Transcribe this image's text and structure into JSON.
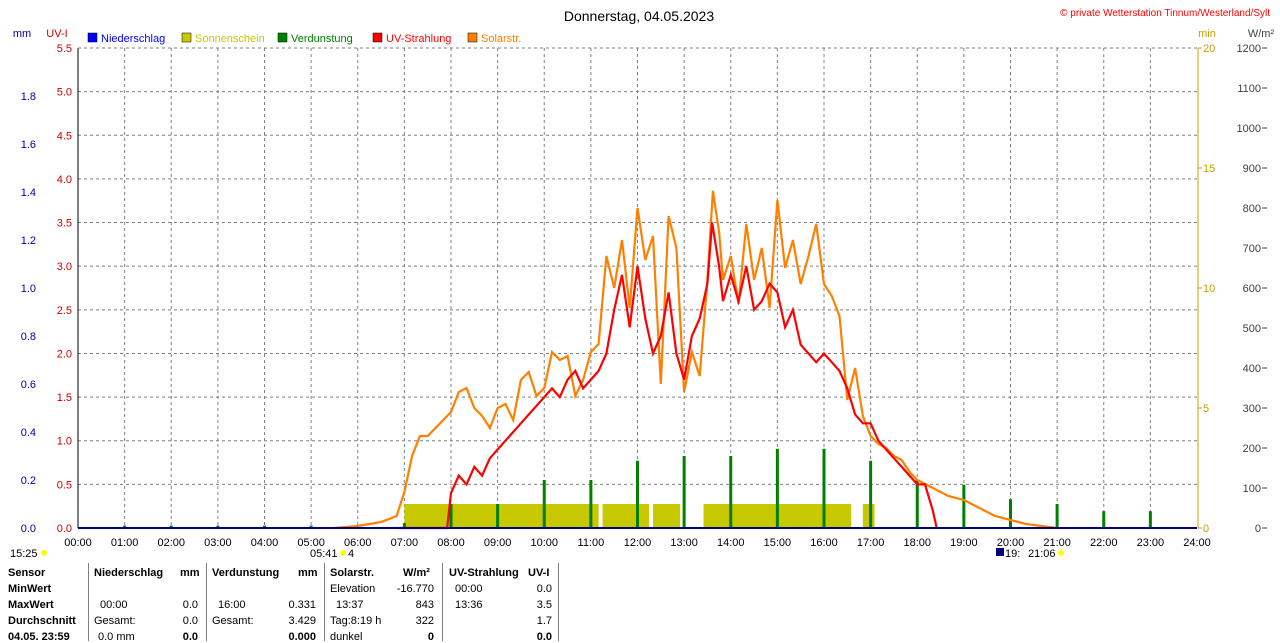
{
  "title": "Donnerstag, 04.05.2023",
  "copyright": "© private Wetterstation Tinnum/Westerland/Sylt",
  "colors": {
    "niederschlag": "#0000ff",
    "sonnenschein": "#c8c800",
    "verdunstung": "#008000",
    "uv": "#ff0000",
    "solar": "#ff8000",
    "mm_axis": "#0000a0",
    "uv_axis": "#cc0000",
    "min_axis": "#c8a000",
    "wm2_axis": "#404040",
    "grid": "#808080"
  },
  "legend": [
    {
      "label": "Niederschlag",
      "color": "#0000ff"
    },
    {
      "label": "Sonnenschein",
      "color": "#c8c800"
    },
    {
      "label": "Verdunstung",
      "color": "#008000"
    },
    {
      "label": "UV-Strahlung",
      "color": "#ff0000"
    },
    {
      "label": "Solarstr.",
      "color": "#ff8000"
    }
  ],
  "axis_units": {
    "mm": "mm",
    "uv": "UV-I",
    "min": "min",
    "wm2": "W/m²"
  },
  "sun": {
    "sunrise_label": "05:41",
    "sunrise_extra": "4",
    "sunset_label": "21:06",
    "sunset_prefix": "19:",
    "daylength_left": "15:25"
  },
  "chart_data": {
    "type": "line",
    "x_unit": "time",
    "xlim": [
      "00:00",
      "24:00"
    ],
    "x_ticks": [
      "00:00",
      "01:00",
      "02:00",
      "03:00",
      "04:00",
      "05:00",
      "06:00",
      "07:00",
      "08:00",
      "09:00",
      "10:00",
      "11:00",
      "12:00",
      "13:00",
      "14:00",
      "15:00",
      "16:00",
      "17:00",
      "18:00",
      "19:00",
      "20:00",
      "21:00",
      "22:00",
      "23:00",
      "24:00"
    ],
    "axes": {
      "mm": {
        "label": "mm",
        "ylim": [
          0,
          2.0
        ],
        "ticks": [
          "0.0",
          "0.2",
          "0.4",
          "0.6",
          "0.8",
          "1.0",
          "1.2",
          "1.4",
          "1.6",
          "1.8"
        ]
      },
      "uv": {
        "label": "UV-I",
        "ylim": [
          0,
          5.5
        ],
        "ticks": [
          "0.0",
          "0.5",
          "1.0",
          "1.5",
          "2.0",
          "2.5",
          "3.0",
          "3.5",
          "4.0",
          "4.5",
          "5.0",
          "5.5"
        ]
      },
      "min": {
        "label": "min",
        "ylim": [
          0,
          20
        ],
        "ticks": [
          "0",
          "5",
          "10",
          "15",
          "20"
        ]
      },
      "wm2": {
        "label": "W/m²",
        "ylim": [
          0,
          1200
        ],
        "ticks": [
          "0",
          "100",
          "200",
          "300",
          "400",
          "500",
          "600",
          "700",
          "800",
          "900",
          "1000",
          "1100",
          "1200"
        ]
      }
    },
    "grid": true,
    "legend_position": "top",
    "series": [
      {
        "name": "Solarstr.",
        "axis": "wm2",
        "x": [
          "05:30",
          "06:00",
          "06:30",
          "06:50",
          "07:00",
          "07:10",
          "07:20",
          "07:30",
          "07:40",
          "07:50",
          "08:00",
          "08:10",
          "08:20",
          "08:30",
          "08:40",
          "08:50",
          "09:00",
          "09:10",
          "09:20",
          "09:30",
          "09:40",
          "09:50",
          "10:00",
          "10:10",
          "10:20",
          "10:30",
          "10:40",
          "10:50",
          "11:00",
          "11:10",
          "11:20",
          "11:30",
          "11:40",
          "11:50",
          "12:00",
          "12:10",
          "12:20",
          "12:30",
          "12:40",
          "12:50",
          "13:00",
          "13:10",
          "13:20",
          "13:30",
          "13:37",
          "13:45",
          "13:50",
          "14:00",
          "14:10",
          "14:20",
          "14:30",
          "14:40",
          "14:50",
          "15:00",
          "15:10",
          "15:20",
          "15:30",
          "15:40",
          "15:50",
          "16:00",
          "16:10",
          "16:20",
          "16:30",
          "16:40",
          "16:50",
          "17:00",
          "17:10",
          "17:20",
          "17:30",
          "17:40",
          "17:50",
          "18:00",
          "18:20",
          "18:40",
          "19:00",
          "19:20",
          "19:40",
          "20:00",
          "20:20",
          "20:40",
          "21:00"
        ],
        "values": [
          0,
          5,
          15,
          30,
          90,
          180,
          230,
          230,
          250,
          270,
          290,
          340,
          350,
          300,
          280,
          250,
          300,
          310,
          270,
          370,
          390,
          330,
          350,
          440,
          420,
          430,
          330,
          370,
          440,
          460,
          680,
          600,
          720,
          550,
          800,
          670,
          730,
          360,
          780,
          700,
          340,
          440,
          380,
          620,
          843,
          740,
          620,
          680,
          560,
          760,
          620,
          700,
          550,
          820,
          650,
          720,
          610,
          680,
          760,
          610,
          580,
          530,
          320,
          400,
          280,
          230,
          210,
          200,
          180,
          170,
          140,
          120,
          100,
          80,
          70,
          50,
          30,
          20,
          10,
          5,
          0
        ]
      },
      {
        "name": "UV-Strahlung",
        "axis": "uv",
        "x": [
          "06:50",
          "07:00",
          "07:30",
          "07:55",
          "08:00",
          "08:10",
          "08:20",
          "08:30",
          "08:40",
          "08:50",
          "09:00",
          "09:10",
          "09:20",
          "09:30",
          "09:40",
          "09:50",
          "10:00",
          "10:10",
          "10:20",
          "10:30",
          "10:40",
          "10:50",
          "11:00",
          "11:10",
          "11:20",
          "11:30",
          "11:40",
          "11:50",
          "12:00",
          "12:10",
          "12:20",
          "12:30",
          "12:40",
          "12:50",
          "13:00",
          "13:10",
          "13:20",
          "13:30",
          "13:36",
          "13:45",
          "13:50",
          "14:00",
          "14:10",
          "14:20",
          "14:30",
          "14:40",
          "14:50",
          "15:00",
          "15:10",
          "15:20",
          "15:30",
          "15:40",
          "15:50",
          "16:00",
          "16:10",
          "16:20",
          "16:30",
          "16:40",
          "16:50",
          "17:00",
          "17:10",
          "17:20",
          "17:30",
          "17:40",
          "17:50",
          "18:00",
          "18:10",
          "18:20",
          "18:25"
        ],
        "values": [
          0,
          0,
          0,
          0,
          0.4,
          0.6,
          0.5,
          0.7,
          0.6,
          0.8,
          0.9,
          1.0,
          1.1,
          1.2,
          1.3,
          1.4,
          1.5,
          1.6,
          1.5,
          1.7,
          1.8,
          1.6,
          1.7,
          1.8,
          2.0,
          2.5,
          2.9,
          2.3,
          3.0,
          2.4,
          2.0,
          2.2,
          2.7,
          2.0,
          1.7,
          2.2,
          2.4,
          2.8,
          3.5,
          3.0,
          2.6,
          2.9,
          2.6,
          3.0,
          2.5,
          2.6,
          2.8,
          2.7,
          2.3,
          2.5,
          2.1,
          2.0,
          1.9,
          2.0,
          1.9,
          1.8,
          1.6,
          1.3,
          1.2,
          1.2,
          1.0,
          0.9,
          0.8,
          0.7,
          0.6,
          0.5,
          0.5,
          0.2,
          0.0
        ]
      },
      {
        "name": "Verdunstung",
        "axis": "mm",
        "type": "bar",
        "x": [
          "01:00",
          "02:00",
          "03:00",
          "04:00",
          "05:00",
          "06:00",
          "07:00",
          "08:00",
          "09:00",
          "10:00",
          "11:00",
          "12:00",
          "13:00",
          "14:00",
          "15:00",
          "16:00",
          "17:00",
          "18:00",
          "19:00",
          "20:00",
          "21:00",
          "22:00",
          "23:00"
        ],
        "values": [
          0.01,
          0.01,
          0.01,
          0.01,
          0.01,
          0.0,
          0.02,
          0.1,
          0.1,
          0.2,
          0.2,
          0.28,
          0.3,
          0.3,
          0.33,
          0.33,
          0.28,
          0.2,
          0.18,
          0.12,
          0.1,
          0.07,
          0.07
        ]
      },
      {
        "name": "Sonnenschein",
        "axis": "min",
        "type": "bar",
        "blocks": [
          {
            "from": "07:00",
            "to": "11:10"
          },
          {
            "from": "11:15",
            "to": "12:15"
          },
          {
            "from": "12:20",
            "to": "12:55"
          },
          {
            "from": "13:25",
            "to": "16:35"
          },
          {
            "from": "16:50",
            "to": "17:05"
          }
        ],
        "block_value": 1
      }
    ]
  },
  "stats": {
    "row_labels": [
      "Sensor",
      "MinWert",
      "MaxWert",
      "Durchschnitt",
      "04.05. 23:59"
    ],
    "niederschlag": {
      "header": "Niederschlag",
      "unit": "mm",
      "min": [
        "",
        ""
      ],
      "max": [
        "00:00",
        "0.0"
      ],
      "avg": [
        "Gesamt:",
        "0.0"
      ],
      "last": [
        "0.0 mm",
        "0.0"
      ]
    },
    "verdunstung": {
      "header": "Verdunstung",
      "unit": "mm",
      "min": [
        "",
        ""
      ],
      "max": [
        "16:00",
        "0.331"
      ],
      "avg": [
        "Gesamt:",
        "3.429"
      ],
      "last": [
        "",
        "0.000"
      ]
    },
    "solar": {
      "header": "Solarstr.",
      "unit": "W/m²",
      "min": [
        "Elevation",
        "-16.770"
      ],
      "max": [
        "13:37",
        "843"
      ],
      "avg": [
        "Tag:8:19 h",
        "322"
      ],
      "last": [
        "dunkel",
        "0"
      ]
    },
    "uv": {
      "header": "UV-Strahlung",
      "unit": "UV-I",
      "min": [
        "00:00",
        "0.0"
      ],
      "max": [
        "13:36",
        "3.5"
      ],
      "avg": [
        "",
        "1.7"
      ],
      "last": [
        "",
        "0.0"
      ]
    }
  }
}
